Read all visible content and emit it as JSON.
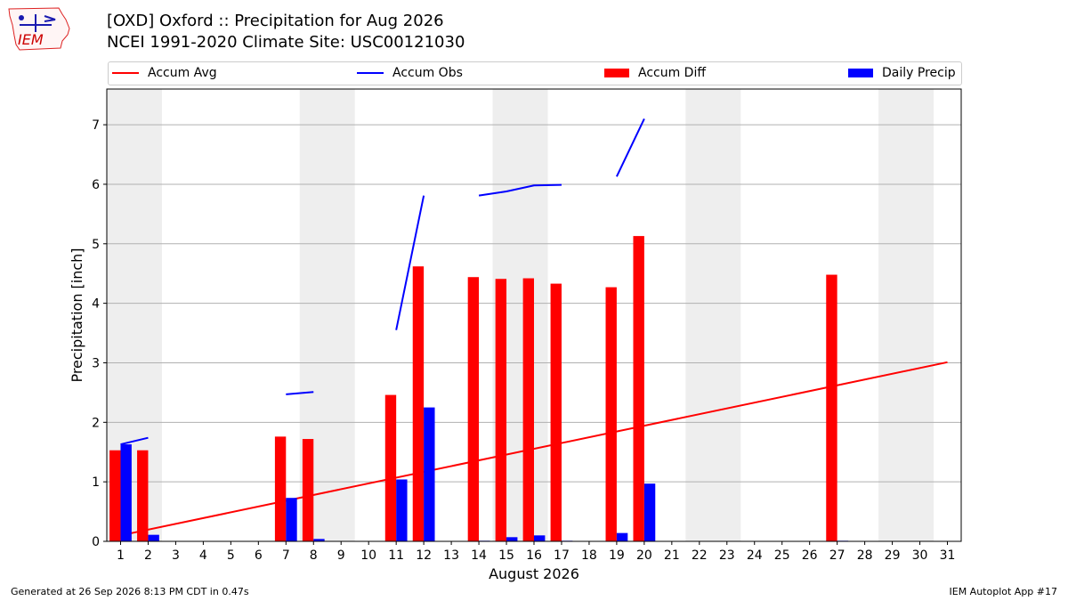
{
  "header": {
    "title_line1": "[OXD] Oxford :: Precipitation for Aug 2026",
    "title_line2": "NCEI 1991-2020 Climate Site: USC00121030",
    "logo_text": "IEM"
  },
  "footer": {
    "left": "Generated at 26 Sep 2026 8:13 PM CDT in 0.47s",
    "right": "IEM Autoplot App #17"
  },
  "colors": {
    "accum_avg": "#ff0000",
    "accum_obs": "#0000ff",
    "accum_diff": "#ff0000",
    "daily_precip": "#0000ff",
    "weekend_band": "#eeeeee",
    "grid": "#b0b0b0"
  },
  "chart_data": {
    "type": "bar",
    "xlabel": "August 2026",
    "ylabel": "Precipitation [inch]",
    "xlim": [
      0.5,
      31.5
    ],
    "ylim": [
      0,
      7.6
    ],
    "yticks": [
      0,
      1,
      2,
      3,
      4,
      5,
      6,
      7
    ],
    "grid": true,
    "legend_position": "top",
    "legend": [
      "Accum Avg",
      "Accum Obs",
      "Accum Diff",
      "Daily Precip"
    ],
    "days": [
      1,
      2,
      3,
      4,
      5,
      6,
      7,
      8,
      9,
      10,
      11,
      12,
      13,
      14,
      15,
      16,
      17,
      18,
      19,
      20,
      21,
      22,
      23,
      24,
      25,
      26,
      27,
      28,
      29,
      30,
      31
    ],
    "weekend_bands": [
      [
        1,
        2
      ],
      [
        8,
        9
      ],
      [
        15,
        16
      ],
      [
        22,
        23
      ],
      [
        29,
        30
      ]
    ],
    "series": [
      {
        "name": "Accum Avg",
        "kind": "line",
        "x": [
          1,
          31
        ],
        "values": [
          0.1,
          3.01
        ]
      },
      {
        "name": "Accum Obs",
        "kind": "line_segments",
        "segments": [
          [
            [
              1,
              1.63
            ],
            [
              2,
              1.74
            ]
          ],
          [
            [
              7,
              2.47
            ],
            [
              8,
              2.51
            ]
          ],
          [
            [
              11,
              3.55
            ],
            [
              12,
              5.81
            ]
          ],
          [
            [
              14,
              5.81
            ],
            [
              15,
              5.88
            ],
            [
              16,
              5.98
            ],
            [
              17,
              5.99
            ]
          ],
          [
            [
              19,
              6.13
            ],
            [
              20,
              7.1
            ]
          ]
        ]
      },
      {
        "name": "Accum Diff",
        "kind": "bar",
        "x": [
          1,
          2,
          7,
          8,
          11,
          12,
          14,
          15,
          16,
          17,
          19,
          20,
          27
        ],
        "values": [
          1.53,
          1.53,
          1.76,
          1.72,
          2.46,
          4.62,
          4.44,
          4.41,
          4.42,
          4.33,
          4.27,
          5.13,
          4.48
        ]
      },
      {
        "name": "Daily Precip",
        "kind": "bar",
        "x": [
          1,
          2,
          7,
          8,
          11,
          12,
          14,
          15,
          16,
          17,
          19,
          20,
          27
        ],
        "values": [
          1.63,
          0.11,
          0.73,
          0.04,
          1.04,
          2.25,
          0.01,
          0.07,
          0.1,
          0.01,
          0.14,
          0.97,
          0.01
        ]
      }
    ]
  }
}
